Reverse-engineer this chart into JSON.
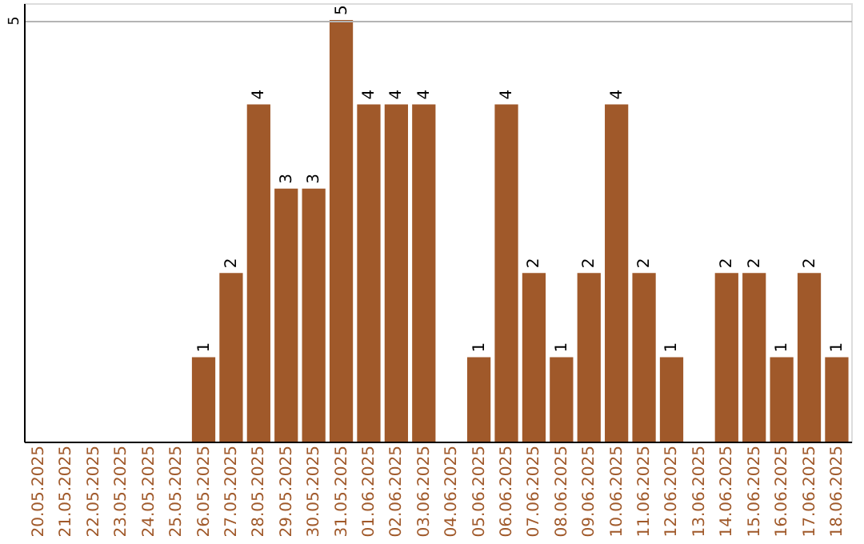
{
  "chart_data": {
    "type": "bar",
    "categories": [
      "20.05.2025",
      "21.05.2025",
      "22.05.2025",
      "23.05.2025",
      "24.05.2025",
      "25.05.2025",
      "26.05.2025",
      "27.05.2025",
      "28.05.2025",
      "29.05.2025",
      "30.05.2025",
      "31.05.2025",
      "01.06.2025",
      "02.06.2025",
      "03.06.2025",
      "04.06.2025",
      "05.06.2025",
      "06.06.2025",
      "07.06.2025",
      "08.06.2025",
      "09.06.2025",
      "10.06.2025",
      "11.06.2025",
      "12.06.2025",
      "13.06.2025",
      "14.06.2025",
      "15.06.2025",
      "16.06.2025",
      "17.06.2025",
      "18.06.2025"
    ],
    "values": [
      0,
      0,
      0,
      0,
      0,
      0,
      1,
      2,
      4,
      3,
      3,
      5,
      4,
      4,
      4,
      0,
      1,
      4,
      2,
      1,
      2,
      4,
      2,
      1,
      0,
      2,
      2,
      1,
      2,
      1
    ],
    "value_labels": [
      null,
      null,
      null,
      null,
      null,
      null,
      "1",
      "2",
      "4",
      "3",
      "3",
      "5",
      "4",
      "4",
      "4",
      null,
      "1",
      "4",
      "2",
      "1",
      "2",
      "4",
      "2",
      "1",
      null,
      "2",
      "2",
      "1",
      "2",
      "1"
    ],
    "color": "#a0592a",
    "ylim": [
      0,
      5.2
    ],
    "yticks": [
      5
    ],
    "grid": "y"
  }
}
